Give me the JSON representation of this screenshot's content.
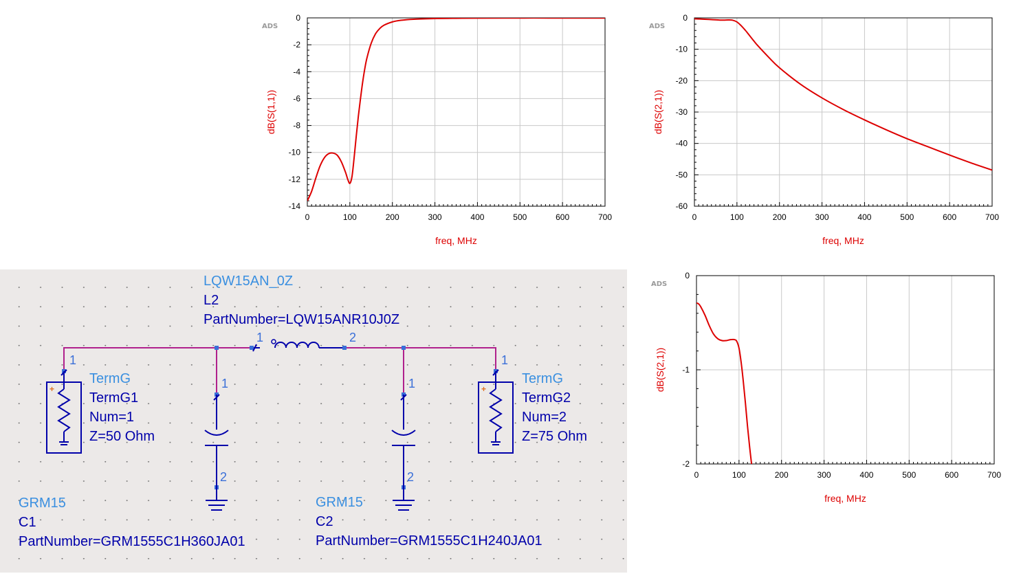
{
  "colors": {
    "trace": "#dd0000",
    "grid": "#c8c8c8",
    "wire": "#b0208c",
    "component": "#0000aa",
    "component_light": "#3a8fe0",
    "schematic_bg": "#ece9e8"
  },
  "chart_data": [
    {
      "type": "line",
      "logo": "ADS",
      "xlabel": "freq, MHz",
      "ylabel": "dB(S(1,1))",
      "xlim": [
        0,
        700
      ],
      "ylim": [
        -14,
        0
      ],
      "xticks": [
        0,
        100,
        200,
        300,
        400,
        500,
        600,
        700
      ],
      "yticks": [
        0,
        -2,
        -4,
        -6,
        -8,
        -10,
        -12,
        -14
      ],
      "grid": true,
      "series": [
        {
          "x": [
            0,
            10,
            20,
            30,
            40,
            50,
            60,
            70,
            80,
            90,
            95,
            100,
            105,
            110,
            115,
            120,
            125,
            130,
            135,
            140,
            150,
            160,
            170,
            180,
            200,
            220,
            250,
            300,
            350,
            400,
            500,
            600,
            700
          ],
          "y": [
            -13.6,
            -12.9,
            -11.9,
            -11.0,
            -10.4,
            -10.1,
            -10.05,
            -10.2,
            -10.7,
            -11.5,
            -12.0,
            -12.3,
            -11.8,
            -10.4,
            -8.8,
            -7.3,
            -6.0,
            -4.8,
            -3.8,
            -3.0,
            -1.9,
            -1.2,
            -0.8,
            -0.55,
            -0.3,
            -0.18,
            -0.1,
            -0.05,
            -0.03,
            -0.02,
            -0.01,
            -0.01,
            -0.01
          ]
        }
      ]
    },
    {
      "type": "line",
      "logo": "ADS",
      "xlabel": "freq, MHz",
      "ylabel": "dB(S(2,1))",
      "xlim": [
        0,
        700
      ],
      "ylim": [
        -60,
        0
      ],
      "xticks": [
        0,
        100,
        200,
        300,
        400,
        500,
        600,
        700
      ],
      "yticks": [
        0,
        -10,
        -20,
        -30,
        -40,
        -50,
        -60
      ],
      "grid": true,
      "series": [
        {
          "x": [
            0,
            20,
            40,
            60,
            70,
            80,
            90,
            100,
            110,
            120,
            130,
            140,
            150,
            175,
            200,
            250,
            300,
            350,
            400,
            450,
            500,
            550,
            600,
            650,
            700
          ],
          "y": [
            -0.3,
            -0.4,
            -0.55,
            -0.7,
            -0.7,
            -0.65,
            -0.75,
            -1.3,
            -2.5,
            -4.0,
            -5.7,
            -7.4,
            -9.0,
            -12.6,
            -15.9,
            -21.2,
            -25.5,
            -29.2,
            -32.5,
            -35.6,
            -38.5,
            -41.1,
            -43.7,
            -46.2,
            -48.5
          ]
        }
      ]
    },
    {
      "type": "line",
      "logo": "ADS",
      "xlabel": "freq, MHz",
      "ylabel": "dB(S(2,1))",
      "xlim": [
        0,
        700
      ],
      "ylim": [
        -2,
        0
      ],
      "xticks": [
        0,
        100,
        200,
        300,
        400,
        500,
        600,
        700
      ],
      "yticks": [
        0,
        -1,
        -2
      ],
      "grid": true,
      "series": [
        {
          "x": [
            0,
            5,
            10,
            20,
            30,
            40,
            50,
            60,
            70,
            80,
            90,
            95,
            100,
            105,
            110,
            115,
            120,
            125,
            130
          ],
          "y": [
            -0.29,
            -0.3,
            -0.33,
            -0.42,
            -0.53,
            -0.62,
            -0.67,
            -0.69,
            -0.69,
            -0.68,
            -0.68,
            -0.7,
            -0.77,
            -0.92,
            -1.12,
            -1.35,
            -1.6,
            -1.82,
            -2.02
          ]
        }
      ]
    }
  ],
  "schematic": {
    "inductor": {
      "model": "LQW15AN_0Z",
      "name": "L2",
      "part": "PartNumber=LQW15ANR10J0Z",
      "pin1": "1",
      "pin2": "2"
    },
    "term1": {
      "type": "TermG",
      "name": "TermG1",
      "num": "Num=1",
      "z": "Z=50 Ohm",
      "pin": "1",
      "plus": "+"
    },
    "term2": {
      "type": "TermG",
      "name": "TermG2",
      "num": "Num=2",
      "z": "Z=75 Ohm",
      "pin": "1",
      "plus": "+"
    },
    "cap1": {
      "model": "GRM15",
      "name": "C1",
      "part": "PartNumber=GRM1555C1H360JA01",
      "pin1": "1",
      "pin2": "2"
    },
    "cap2": {
      "model": "GRM15",
      "name": "C2",
      "part": "PartNumber=GRM1555C1H240JA01",
      "pin1": "1",
      "pin2": "2"
    }
  }
}
